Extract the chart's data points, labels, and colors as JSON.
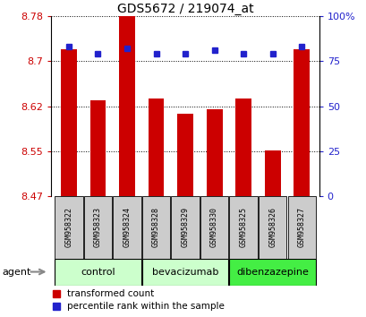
{
  "title": "GDS5672 / 219074_at",
  "samples": [
    "GSM958322",
    "GSM958323",
    "GSM958324",
    "GSM958328",
    "GSM958329",
    "GSM958330",
    "GSM958325",
    "GSM958326",
    "GSM958327"
  ],
  "transformed_count": [
    8.72,
    8.635,
    8.775,
    8.638,
    8.612,
    8.62,
    8.638,
    8.551,
    8.72
  ],
  "percentile_rank": [
    83,
    79,
    82,
    79,
    79,
    81,
    79,
    79,
    83
  ],
  "ylim_left": [
    8.475,
    8.775
  ],
  "ylim_right": [
    0,
    100
  ],
  "yticks_left": [
    8.475,
    8.55,
    8.625,
    8.7,
    8.775
  ],
  "yticks_right": [
    0,
    25,
    50,
    75,
    100
  ],
  "bar_color": "#cc0000",
  "dot_color": "#2222cc",
  "bar_baseline": 8.475,
  "groups": [
    {
      "label": "control",
      "indices": [
        0,
        1,
        2
      ],
      "color": "#ccffcc"
    },
    {
      "label": "bevacizumab",
      "indices": [
        3,
        4,
        5
      ],
      "color": "#ccffcc"
    },
    {
      "label": "dibenzazepine",
      "indices": [
        6,
        7,
        8
      ],
      "color": "#44ee44"
    }
  ],
  "agent_label": "agent",
  "legend_bar_label": "transformed count",
  "legend_dot_label": "percentile rank within the sample",
  "bar_label_color": "#cc0000",
  "dot_label_color": "#2222cc",
  "sample_box_color": "#cccccc",
  "title_fontsize": 10
}
